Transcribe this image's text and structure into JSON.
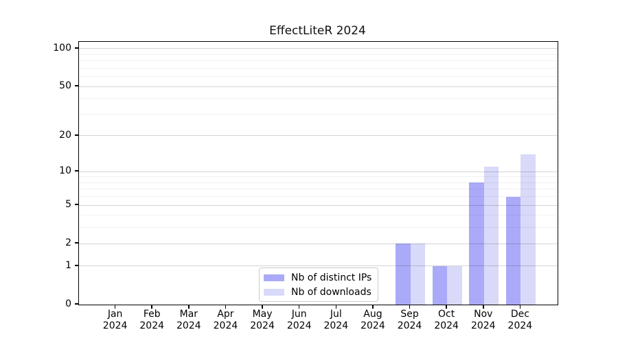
{
  "chart_data": {
    "type": "bar",
    "title": "EffectLiteR 2024",
    "categories": [
      "Jan 2024",
      "Feb 2024",
      "Mar 2024",
      "Apr 2024",
      "May 2024",
      "Jun 2024",
      "Jul 2024",
      "Aug 2024",
      "Sep 2024",
      "Oct 2024",
      "Nov 2024",
      "Dec 2024"
    ],
    "categories_line1": [
      "Jan",
      "Feb",
      "Mar",
      "Apr",
      "May",
      "Jun",
      "Jul",
      "Aug",
      "Sep",
      "Oct",
      "Nov",
      "Dec"
    ],
    "categories_line2": "2024",
    "series": [
      {
        "name": "Nb of distinct IPs",
        "color": "#aaaaf8",
        "values": [
          0,
          0,
          0,
          0,
          0,
          0,
          0,
          0,
          2,
          1,
          8,
          6
        ]
      },
      {
        "name": "Nb of downloads",
        "color": "#d9d9fa",
        "values": [
          0,
          0,
          0,
          0,
          0,
          0,
          0,
          0,
          2,
          1,
          11,
          14
        ]
      }
    ],
    "yscale": "log1p",
    "ylim": [
      0,
      113
    ],
    "yticks": [
      0,
      1,
      2,
      5,
      10,
      20,
      50,
      100
    ],
    "yticks_minor": [
      3,
      4,
      6,
      7,
      8,
      9,
      30,
      40,
      60,
      70,
      80,
      90
    ],
    "grid": "major+minor, horizontal, drawn over bars",
    "legend_position": "lower center",
    "colors": {
      "background": "#ffffff",
      "spine": "#000000",
      "major_grid": "rgba(0,0,0,0.17)",
      "minor_grid": "rgba(0,0,0,0.055)",
      "text": "#000000",
      "legend_border": "#cbcbcb"
    }
  }
}
